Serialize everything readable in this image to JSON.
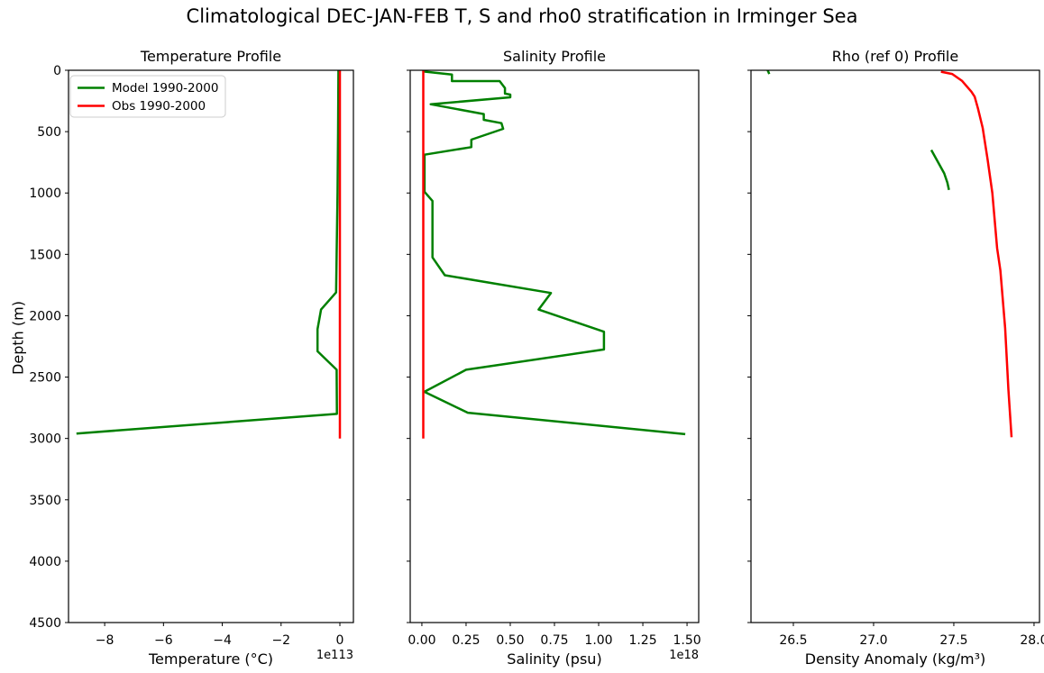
{
  "figure": {
    "title": "Climatological DEC-JAN-FEB T, S and rho0 stratification in Irminger Sea"
  },
  "depth_axis": {
    "label": "Depth (m)",
    "range": [
      0,
      4500
    ],
    "ticks": [
      {
        "v": 0,
        "label": "0"
      },
      {
        "v": 500,
        "label": "500"
      },
      {
        "v": 1000,
        "label": "1000"
      },
      {
        "v": 1500,
        "label": "1500"
      },
      {
        "v": 2000,
        "label": "2000"
      },
      {
        "v": 2500,
        "label": "2500"
      },
      {
        "v": 3000,
        "label": "3000"
      },
      {
        "v": 3500,
        "label": "3500"
      },
      {
        "v": 4000,
        "label": "4000"
      },
      {
        "v": 4500,
        "label": "4500"
      }
    ]
  },
  "legend": {
    "entries": [
      {
        "label": "Model 1990-2000",
        "color": "#008000"
      },
      {
        "label": "Obs 1990-2000",
        "color": "#ff0000"
      }
    ]
  },
  "chart_data": [
    {
      "id": "temperature",
      "type": "line",
      "title": "Temperature Profile",
      "xlabel": "Temperature (°C)",
      "offset_text": "1e113",
      "xlim": [
        -9.23,
        0.46
      ],
      "ylim": [
        4500,
        0
      ],
      "grid": false,
      "legend_visible": true,
      "xticks": [
        {
          "v": -8,
          "label": "−8"
        },
        {
          "v": -6,
          "label": "−6"
        },
        {
          "v": -4,
          "label": "−4"
        },
        {
          "v": -2,
          "label": "−2"
        },
        {
          "v": 0,
          "label": "0"
        }
      ],
      "series": [
        {
          "name": "Model 1990-2000",
          "color": "#008000",
          "points": [
            [
              -0.05,
              0
            ],
            [
              -0.06,
              500
            ],
            [
              -0.08,
              1000
            ],
            [
              -0.11,
              1500
            ],
            [
              -0.13,
              1810
            ],
            [
              -0.64,
              1950
            ],
            [
              -0.76,
              2110
            ],
            [
              -0.76,
              2290
            ],
            [
              -0.11,
              2440
            ],
            [
              -0.1,
              2800
            ],
            [
              -8.96,
              2960
            ]
          ]
        },
        {
          "name": "Obs 1990-2000",
          "color": "#ff0000",
          "points": [
            [
              0,
              0
            ],
            [
              0,
              3000
            ]
          ]
        }
      ]
    },
    {
      "id": "salinity",
      "type": "line",
      "title": "Salinity Profile",
      "xlabel": "Salinity (psu)",
      "offset_text": "1e18",
      "xlim": [
        -0.066,
        1.566
      ],
      "ylim": [
        4500,
        0
      ],
      "grid": false,
      "legend_visible": false,
      "xticks": [
        {
          "v": 0.0,
          "label": "0.00"
        },
        {
          "v": 0.25,
          "label": "0.25"
        },
        {
          "v": 0.5,
          "label": "0.50"
        },
        {
          "v": 0.75,
          "label": "0.75"
        },
        {
          "v": 1.0,
          "label": "1.00"
        },
        {
          "v": 1.25,
          "label": "1.25"
        },
        {
          "v": 1.5,
          "label": "1.50"
        }
      ],
      "series": [
        {
          "name": "Model 1990-2000",
          "color": "#008000",
          "points": [
            [
              0.01,
              10
            ],
            [
              0.17,
              35
            ],
            [
              0.17,
              88
            ],
            [
              0.44,
              88
            ],
            [
              0.47,
              145
            ],
            [
              0.47,
              190
            ],
            [
              0.5,
              198
            ],
            [
              0.5,
              220
            ],
            [
              0.05,
              277
            ],
            [
              0.35,
              357
            ],
            [
              0.35,
              404
            ],
            [
              0.45,
              431
            ],
            [
              0.46,
              477
            ],
            [
              0.28,
              565
            ],
            [
              0.28,
              626
            ],
            [
              0.015,
              688
            ],
            [
              0.015,
              990
            ],
            [
              0.06,
              1065
            ],
            [
              0.06,
              1525
            ],
            [
              0.13,
              1670
            ],
            [
              0.73,
              1815
            ],
            [
              0.66,
              1950
            ],
            [
              1.03,
              2130
            ],
            [
              1.03,
              2275
            ],
            [
              0.25,
              2440
            ],
            [
              0.014,
              2620
            ],
            [
              0.26,
              2790
            ],
            [
              1.49,
              2965
            ]
          ]
        },
        {
          "name": "Obs 1990-2000",
          "color": "#ff0000",
          "points": [
            [
              0.008,
              0
            ],
            [
              0.008,
              3000
            ]
          ]
        }
      ]
    },
    {
      "id": "rho",
      "type": "line",
      "title": "Rho (ref 0) Profile",
      "xlabel": "Density Anomaly (kg/m³)",
      "offset_text": "",
      "xlim": [
        26.236,
        28.034
      ],
      "ylim": [
        4500,
        0
      ],
      "grid": false,
      "legend_visible": false,
      "xticks": [
        {
          "v": 26.5,
          "label": "26.5"
        },
        {
          "v": 27.0,
          "label": "27.0"
        },
        {
          "v": 27.5,
          "label": "27.5"
        },
        {
          "v": 28.0,
          "label": "28.0"
        }
      ],
      "series": [
        {
          "name": "Model 1990-2000",
          "color": "#008000",
          "points": [
            [
              26.34,
              0
            ],
            [
              26.35,
              30
            ],
            null,
            [
              27.36,
              650
            ],
            [
              27.4,
              745
            ],
            [
              27.44,
              840
            ],
            [
              27.46,
              915
            ],
            [
              27.47,
              975
            ]
          ]
        },
        {
          "name": "Obs 1990-2000",
          "color": "#ff0000",
          "points": [
            [
              27.42,
              12
            ],
            [
              27.49,
              30
            ],
            [
              27.55,
              85
            ],
            [
              27.58,
              130
            ],
            [
              27.61,
              175
            ],
            [
              27.63,
              215
            ],
            [
              27.65,
              310
            ],
            [
              27.68,
              470
            ],
            [
              27.71,
              720
            ],
            [
              27.74,
              1000
            ],
            [
              27.77,
              1450
            ],
            [
              27.79,
              1630
            ],
            [
              27.82,
              2100
            ],
            [
              27.84,
              2600
            ],
            [
              27.86,
              2990
            ]
          ]
        }
      ]
    }
  ]
}
